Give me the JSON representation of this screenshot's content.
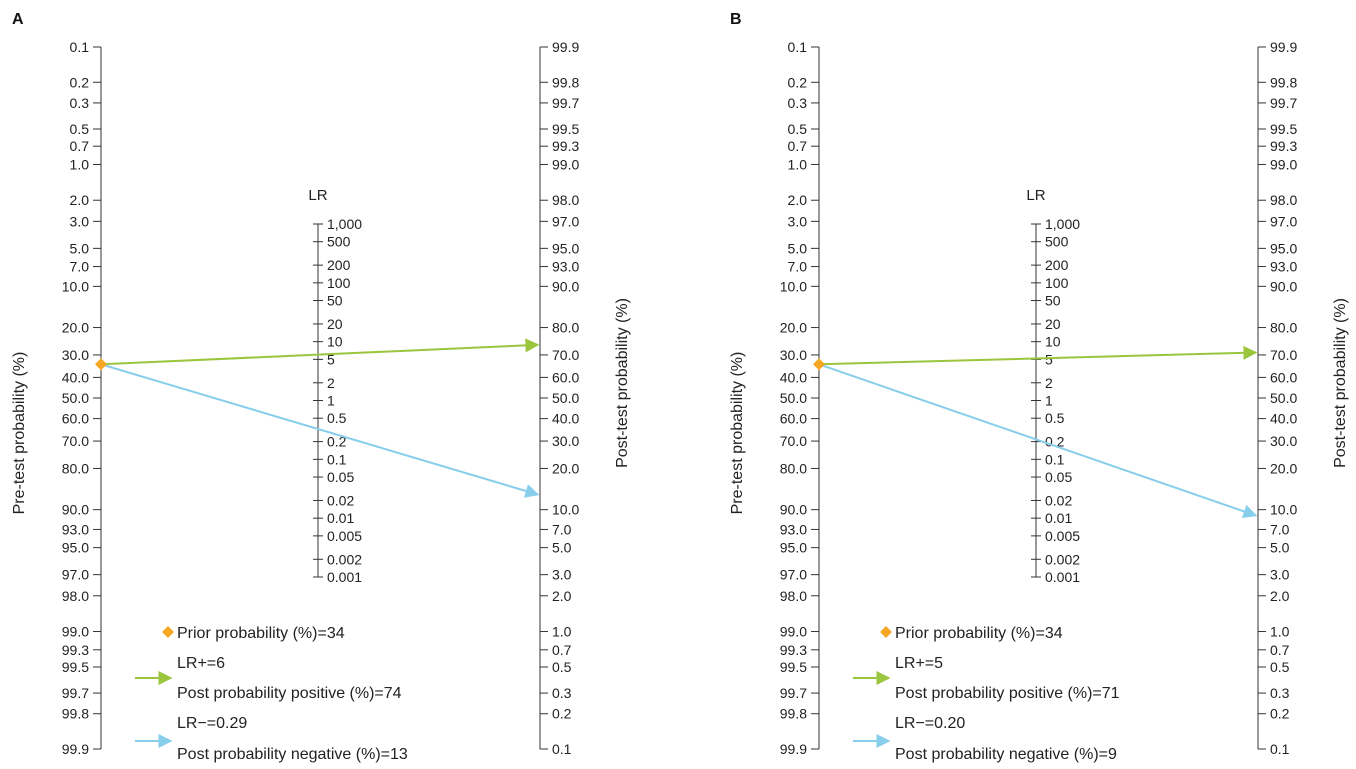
{
  "colors": {
    "prior": "#f5a623",
    "positive": "#9bc53d",
    "negative": "#87ceeb",
    "axis": "#333333",
    "text": "#222222"
  },
  "chart_data": [
    {
      "type": "nomogram",
      "panel_label": "A",
      "title": "",
      "pretest_axis_label": "Pre-test probability (%)",
      "posttest_axis_label": "Post-test probability (%)",
      "lr_axis_label": "LR",
      "pretest_ticks": [
        "0.1",
        "0.2",
        "0.3",
        "0.5",
        "0.7",
        "1.0",
        "2.0",
        "3.0",
        "5.0",
        "7.0",
        "10.0",
        "20.0",
        "30.0",
        "40.0",
        "50.0",
        "60.0",
        "70.0",
        "80.0",
        "90.0",
        "93.0",
        "95.0",
        "97.0",
        "98.0",
        "99.0",
        "99.3",
        "99.5",
        "99.7",
        "99.8",
        "99.9"
      ],
      "posttest_ticks": [
        "99.9",
        "99.8",
        "99.7",
        "99.5",
        "99.3",
        "99.0",
        "98.0",
        "97.0",
        "95.0",
        "93.0",
        "90.0",
        "80.0",
        "70.0",
        "60.0",
        "50.0",
        "40.0",
        "30.0",
        "20.0",
        "10.0",
        "7.0",
        "5.0",
        "3.0",
        "2.0",
        "1.0",
        "0.7",
        "0.5",
        "0.3",
        "0.2",
        "0.1"
      ],
      "lr_ticks": [
        "1,000",
        "500",
        "200",
        "100",
        "50",
        "20",
        "10",
        "5",
        "2",
        "1",
        "0.5",
        "0.2",
        "0.1",
        "0.05",
        "0.02",
        "0.01",
        "0.005",
        "0.002",
        "0.001"
      ],
      "prior_probability": 34,
      "lr_positive": 6,
      "post_positive": 74,
      "lr_negative": 0.29,
      "post_negative": 13,
      "legend": [
        {
          "key": "prior",
          "text": "Prior probability (%)=34"
        },
        {
          "key": "positive",
          "line1": "LR+=6",
          "line2": "Post probability positive (%)=74"
        },
        {
          "key": "negative",
          "line1": "LR−=0.29",
          "line2": "Post probability negative (%)=13"
        }
      ]
    },
    {
      "type": "nomogram",
      "panel_label": "B",
      "title": "",
      "pretest_axis_label": "Pre-test probability (%)",
      "posttest_axis_label": "Post-test probability (%)",
      "lr_axis_label": "LR",
      "pretest_ticks": [
        "0.1",
        "0.2",
        "0.3",
        "0.5",
        "0.7",
        "1.0",
        "2.0",
        "3.0",
        "5.0",
        "7.0",
        "10.0",
        "20.0",
        "30.0",
        "40.0",
        "50.0",
        "60.0",
        "70.0",
        "80.0",
        "90.0",
        "93.0",
        "95.0",
        "97.0",
        "98.0",
        "99.0",
        "99.3",
        "99.5",
        "99.7",
        "99.8",
        "99.9"
      ],
      "posttest_ticks": [
        "99.9",
        "99.8",
        "99.7",
        "99.5",
        "99.3",
        "99.0",
        "98.0",
        "97.0",
        "95.0",
        "93.0",
        "90.0",
        "80.0",
        "70.0",
        "60.0",
        "50.0",
        "40.0",
        "30.0",
        "20.0",
        "10.0",
        "7.0",
        "5.0",
        "3.0",
        "2.0",
        "1.0",
        "0.7",
        "0.5",
        "0.3",
        "0.2",
        "0.1"
      ],
      "lr_ticks": [
        "1,000",
        "500",
        "200",
        "100",
        "50",
        "20",
        "10",
        "5",
        "2",
        "1",
        "0.5",
        "0.2",
        "0.1",
        "0.05",
        "0.02",
        "0.01",
        "0.005",
        "0.002",
        "0.001"
      ],
      "prior_probability": 34,
      "lr_positive": 5,
      "post_positive": 71,
      "lr_negative": 0.2,
      "post_negative": 9,
      "legend": [
        {
          "key": "prior",
          "text": "Prior probability (%)=34"
        },
        {
          "key": "positive",
          "line1": "LR+=5",
          "line2": "Post probability positive (%)=71"
        },
        {
          "key": "negative",
          "line1": "LR−=0.20",
          "line2": "Post probability negative (%)=9"
        }
      ]
    }
  ]
}
